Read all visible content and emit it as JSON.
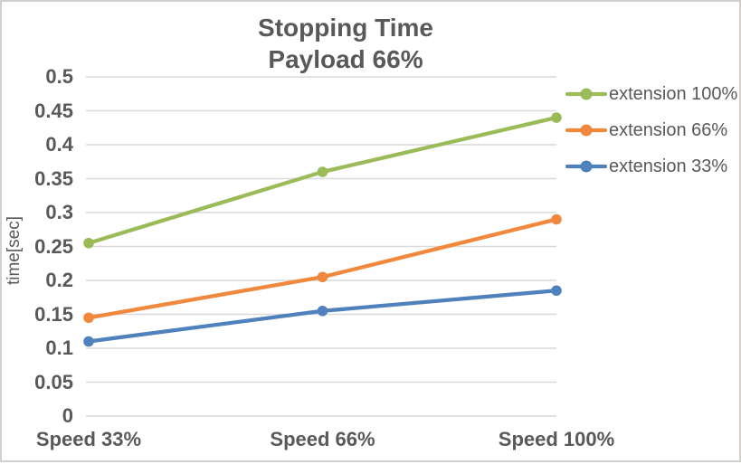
{
  "chart_data": {
    "type": "line",
    "title": "Stopping Time",
    "subtitle": "Payload 66%",
    "categories": [
      "Speed 33%",
      "Speed 66%",
      "Speed 100%"
    ],
    "series": [
      {
        "name": "extension 100%",
        "color": "#9BBB59",
        "values": [
          0.255,
          0.36,
          0.44
        ]
      },
      {
        "name": "extension 66%",
        "color": "#F0893D",
        "values": [
          0.145,
          0.205,
          0.29
        ]
      },
      {
        "name": "extension 33%",
        "color": "#4F81BD",
        "values": [
          0.11,
          0.155,
          0.185
        ]
      }
    ],
    "xlabel": "",
    "ylabel": "time[sec]",
    "ylim": [
      0,
      0.5
    ],
    "ytick_step": 0.05,
    "ytick_labels": [
      "0",
      "0.05",
      "0.1",
      "0.15",
      "0.2",
      "0.25",
      "0.3",
      "0.35",
      "0.4",
      "0.45",
      "0.5"
    ],
    "grid": true,
    "legend_position": "right",
    "marker": "circle"
  },
  "style": {
    "text_color": "#595959",
    "gridline_color": "#D9D9D9",
    "border_color": "#D2D0CE",
    "background_color": "#FFFFFF"
  }
}
